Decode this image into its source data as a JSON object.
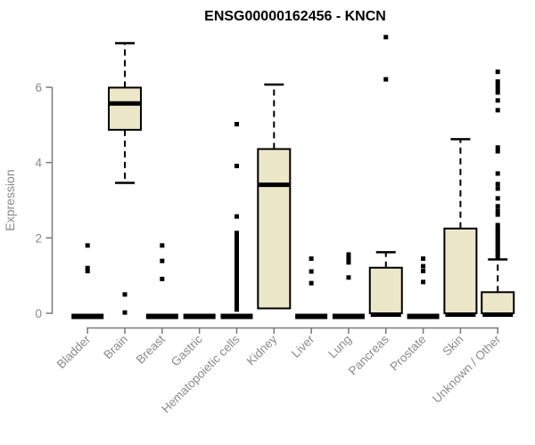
{
  "page": {
    "background": "#ffffff"
  },
  "chart_data": {
    "type": "boxplot",
    "title": "ENSG00000162456 - KNCN",
    "xlabel": "",
    "ylabel": "Expression",
    "ylim": [
      0,
      7.4
    ],
    "yticks": [
      0,
      2,
      4,
      6
    ],
    "grid": false,
    "legend": false,
    "colors": {
      "box_fill": "#ede7c9",
      "box_border": "#000000",
      "median": "#000000",
      "whisker": "#000000",
      "outlier": "#000000",
      "axis": "#7a7a7a",
      "tick_text": "#8a8a8a",
      "title_text": "#000000",
      "background": "#ffffff"
    },
    "categories": [
      "Bladder",
      "Brain",
      "Breast",
      "Gastric",
      "Hematopoietic cells",
      "Kidney",
      "Liver",
      "Lung",
      "Pancreas",
      "Prostate",
      "Skin",
      "Unknown / Other"
    ],
    "series": [
      {
        "category": "Bladder",
        "q1": 0,
        "median": 0,
        "q3": 0,
        "whisker_low": 0,
        "whisker_high": 0,
        "outliers": [
          1.8,
          1.2,
          1.12
        ]
      },
      {
        "category": "Brain",
        "q1": 4.87,
        "median": 5.57,
        "q3": 5.99,
        "whisker_low": 3.46,
        "whisker_high": 7.17,
        "outliers": [
          0.5,
          0.02
        ]
      },
      {
        "category": "Breast",
        "q1": 0,
        "median": 0,
        "q3": 0,
        "whisker_low": 0,
        "whisker_high": 0,
        "outliers": [
          1.8,
          1.39,
          0.91
        ]
      },
      {
        "category": "Gastric",
        "q1": 0,
        "median": 0,
        "q3": 0,
        "whisker_low": 0,
        "whisker_high": 0,
        "outliers": []
      },
      {
        "category": "Hematopoietic cells",
        "q1": 0,
        "median": 0,
        "q3": 0,
        "whisker_low": 0,
        "whisker_high": 0,
        "outliers": [
          5.02,
          3.91,
          2.57,
          2.13,
          2.06,
          1.99,
          1.92,
          1.85,
          1.78,
          1.71,
          1.64,
          1.57,
          1.5,
          1.43,
          1.36,
          1.29,
          1.22,
          1.15,
          1.08,
          1.01,
          0.94,
          0.87,
          0.8,
          0.73,
          0.66,
          0.59,
          0.52,
          0.45,
          0.38,
          0.31,
          0.24,
          0.17,
          0.1
        ]
      },
      {
        "category": "Kidney",
        "q1": 0.13,
        "median": 3.41,
        "q3": 4.36,
        "whisker_low": 0.13,
        "whisker_high": 6.07,
        "outliers": []
      },
      {
        "category": "Liver",
        "q1": 0,
        "median": 0,
        "q3": 0,
        "whisker_low": 0,
        "whisker_high": 0,
        "outliers": [
          1.45,
          1.11,
          0.8
        ]
      },
      {
        "category": "Lung",
        "q1": 0,
        "median": 0,
        "q3": 0,
        "whisker_low": 0,
        "whisker_high": 0,
        "outliers": [
          1.56,
          1.45,
          1.35,
          0.95
        ]
      },
      {
        "category": "Pancreas",
        "q1": 0,
        "median": 0,
        "q3": 1.21,
        "whisker_low": 0,
        "whisker_high": 1.62,
        "outliers": [
          7.33,
          6.21
        ]
      },
      {
        "category": "Prostate",
        "q1": 0,
        "median": 0,
        "q3": 0,
        "whisker_low": 0,
        "whisker_high": 0,
        "outliers": [
          1.45,
          1.25,
          1.12,
          0.83
        ]
      },
      {
        "category": "Skin",
        "q1": 0,
        "median": 0,
        "q3": 2.25,
        "whisker_low": 0,
        "whisker_high": 4.62,
        "outliers": []
      },
      {
        "category": "Unknown / Other",
        "q1": 0,
        "median": 0,
        "q3": 0.56,
        "whisker_low": 0,
        "whisker_high": 1.43,
        "outliers": [
          6.41,
          6.15,
          6.05,
          5.95,
          5.86,
          5.65,
          5.39,
          4.4,
          4.3,
          3.71,
          3.43,
          3.31,
          3.05,
          2.84,
          2.72,
          2.62,
          2.34,
          2.27,
          2.2,
          2.13,
          2.06,
          1.99,
          1.92,
          1.85,
          1.78,
          1.71,
          1.64,
          1.57,
          1.5
        ]
      }
    ]
  }
}
